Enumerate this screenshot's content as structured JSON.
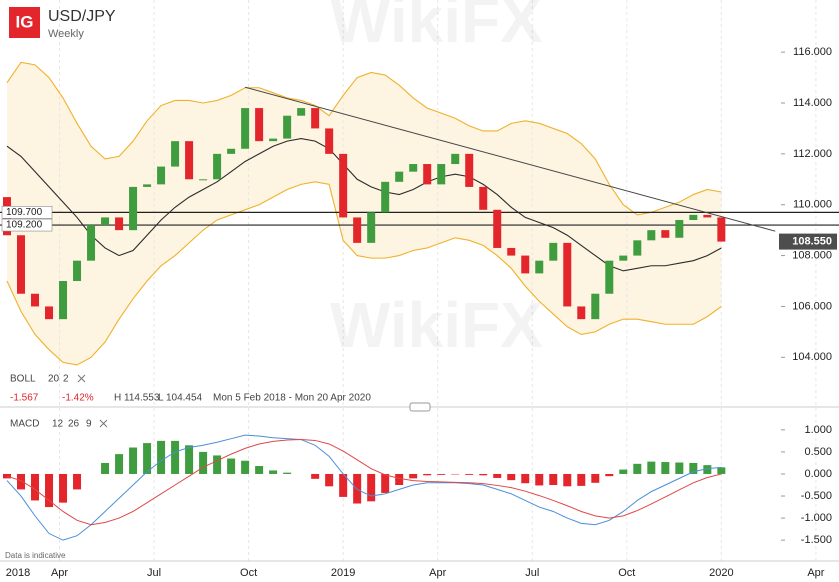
{
  "header": {
    "logo": "IG",
    "symbol": "USD/JPY",
    "interval": "Weekly"
  },
  "watermark": "WikiFX",
  "footnote": "Data is indicative",
  "chart_data": [
    {
      "type": "candlestick",
      "open": [
        110.3,
        108.8,
        106.5,
        106.0,
        105.5,
        107.0,
        107.8,
        109.2,
        109.5,
        109.0,
        110.7,
        110.8,
        111.5,
        112.5,
        111.0,
        111.0,
        112.0,
        112.2,
        113.8,
        112.5,
        112.6,
        113.5,
        113.8,
        113.0,
        112.0,
        109.5,
        108.5,
        109.7,
        110.9,
        111.3,
        111.6,
        110.8,
        111.6,
        112.0,
        110.7,
        109.8,
        108.3,
        108.0,
        107.3,
        107.8,
        108.5,
        106.0,
        105.5,
        106.5,
        107.8,
        108.0,
        108.6,
        109.0,
        108.7,
        109.4,
        109.6,
        109.5
      ],
      "high": {
        "value": 114.553,
        "label": "H 114.553"
      },
      "low": {
        "value": 104.454,
        "label": "L 104.454"
      },
      "close": [
        108.8,
        106.5,
        106.0,
        105.5,
        107.0,
        107.8,
        109.2,
        109.5,
        109.0,
        110.7,
        110.8,
        111.5,
        112.5,
        111.0,
        111.0,
        112.0,
        112.2,
        113.8,
        112.5,
        112.6,
        113.5,
        113.8,
        113.0,
        112.0,
        109.5,
        108.5,
        109.7,
        110.9,
        111.3,
        111.6,
        110.8,
        111.6,
        112.0,
        110.7,
        109.8,
        108.3,
        108.0,
        107.3,
        107.8,
        108.5,
        106.0,
        105.5,
        106.5,
        107.8,
        108.0,
        108.6,
        109.0,
        108.7,
        109.4,
        109.6,
        109.5,
        108.55
      ],
      "up_color": "#3f9d3f",
      "down_color": "#e2262b",
      "xlim": [
        -0.5,
        59.4
      ],
      "xticks": [
        {
          "value": -3.0,
          "label": "2018"
        },
        {
          "value": 3.75,
          "label": "Apr"
        },
        {
          "value": 10.5,
          "label": "Jul"
        },
        {
          "value": 17.25,
          "label": "Oct"
        },
        {
          "value": 24.0,
          "label": "2019"
        },
        {
          "value": 30.75,
          "label": "Apr"
        },
        {
          "value": 37.5,
          "label": "Jul"
        },
        {
          "value": 44.25,
          "label": "Oct"
        },
        {
          "value": 51.0,
          "label": "2020"
        },
        {
          "value": 57.75,
          "label": "Apr"
        }
      ],
      "ylim": [
        102.4,
        118.05
      ],
      "yticks": [
        {
          "value": 104,
          "label": "104.000"
        },
        {
          "value": 106,
          "label": "106.000"
        },
        {
          "value": 108,
          "label": "108.000"
        },
        {
          "value": 110,
          "label": "110.000"
        },
        {
          "value": 112,
          "label": "112.000"
        },
        {
          "value": 114,
          "label": "114.000"
        },
        {
          "value": 116,
          "label": "116.000"
        }
      ],
      "bollinger": {
        "name": "BOLL",
        "period": 20,
        "deviation": 2,
        "upper": [
          114.8,
          115.6,
          115.5,
          115.0,
          114.2,
          113.2,
          112.3,
          111.8,
          111.9,
          112.5,
          113.3,
          113.9,
          114.1,
          114.1,
          114.0,
          114.1,
          114.3,
          114.6,
          114.6,
          114.4,
          114.2,
          114.1,
          113.9,
          113.5,
          114.3,
          115.0,
          115.2,
          115.1,
          114.7,
          114.2,
          113.8,
          113.6,
          113.4,
          113.1,
          112.9,
          112.9,
          113.2,
          113.3,
          113.2,
          113.0,
          112.8,
          112.4,
          111.8,
          110.8,
          110.0,
          109.6,
          109.7,
          109.9,
          110.1,
          110.4,
          110.6,
          110.5
        ],
        "middle": [
          112.3,
          111.9,
          111.3,
          110.7,
          110.1,
          109.5,
          108.8,
          108.3,
          108.0,
          108.2,
          108.8,
          109.4,
          109.9,
          110.3,
          110.6,
          110.9,
          111.3,
          111.7,
          112.0,
          112.3,
          112.5,
          112.6,
          112.5,
          112.2,
          111.6,
          111.0,
          110.7,
          110.5,
          110.4,
          110.6,
          110.9,
          111.1,
          111.2,
          111.1,
          110.8,
          110.4,
          109.9,
          109.5,
          109.3,
          109.1,
          108.8,
          108.4,
          108.0,
          107.6,
          107.4,
          107.5,
          107.6,
          107.6,
          107.7,
          107.8,
          108.0,
          108.3
        ],
        "lower": [
          107.0,
          105.8,
          104.9,
          104.3,
          103.8,
          103.7,
          104.0,
          104.6,
          105.5,
          106.3,
          107.0,
          107.6,
          108.0,
          108.5,
          109.0,
          109.4,
          109.6,
          109.8,
          110.0,
          110.3,
          110.6,
          110.8,
          110.9,
          110.8,
          108.6,
          108.0,
          107.9,
          107.9,
          108.0,
          108.2,
          108.3,
          108.5,
          108.7,
          108.6,
          108.4,
          108.0,
          107.5,
          106.8,
          106.2,
          105.7,
          105.2,
          104.9,
          105.0,
          105.3,
          105.5,
          105.5,
          105.4,
          105.3,
          105.3,
          105.3,
          105.6,
          106.0
        ],
        "color": "#f0b12a",
        "middle_color": "#2b2b2b",
        "fill": "#fdf4e2"
      },
      "trendline": {
        "start": {
          "x": 17.0,
          "value": 114.62
        },
        "end": {
          "x": 54.85,
          "value": 108.96
        }
      },
      "levels": [
        {
          "value": 109.7,
          "label": "109.700"
        },
        {
          "value": 109.2,
          "label": "109.200"
        }
      ],
      "last_price": {
        "value": 108.55,
        "label": "108.550"
      },
      "change": -1.567,
      "change_percent": {
        "value": -1.42,
        "label": "-1.42%"
      },
      "date_range": "Mon 5 Feb 2018 - Mon 20 Apr 2020"
    },
    {
      "type": "macd",
      "name": "MACD",
      "fast": 12,
      "slow": 26,
      "signal_period": 9,
      "macd": [
        -0.15,
        -0.5,
        -0.95,
        -1.35,
        -1.5,
        -1.4,
        -1.15,
        -0.85,
        -0.55,
        -0.25,
        0.05,
        0.3,
        0.5,
        0.6,
        0.65,
        0.72,
        0.8,
        0.88,
        0.86,
        0.82,
        0.8,
        0.78,
        0.65,
        0.4,
        0.0,
        -0.35,
        -0.5,
        -0.45,
        -0.35,
        -0.25,
        -0.2,
        -0.2,
        -0.2,
        -0.22,
        -0.25,
        -0.35,
        -0.45,
        -0.6,
        -0.75,
        -0.85,
        -1.0,
        -1.12,
        -1.15,
        -1.05,
        -0.85,
        -0.6,
        -0.4,
        -0.25,
        -0.1,
        0.05,
        0.12,
        0.15
      ],
      "signal": [
        -0.05,
        -0.15,
        -0.35,
        -0.6,
        -0.85,
        -1.05,
        -1.15,
        -1.1,
        -1.0,
        -0.85,
        -0.65,
        -0.45,
        -0.25,
        -0.05,
        0.15,
        0.3,
        0.45,
        0.58,
        0.68,
        0.74,
        0.77,
        0.78,
        0.76,
        0.68,
        0.52,
        0.32,
        0.12,
        -0.02,
        -0.1,
        -0.15,
        -0.17,
        -0.18,
        -0.19,
        -0.2,
        -0.22,
        -0.26,
        -0.31,
        -0.39,
        -0.49,
        -0.6,
        -0.72,
        -0.85,
        -0.95,
        -1.0,
        -0.95,
        -0.83,
        -0.68,
        -0.52,
        -0.36,
        -0.2,
        -0.08,
        0.0
      ],
      "histogram": [
        -0.1,
        -0.35,
        -0.6,
        -0.75,
        -0.65,
        -0.35,
        0.0,
        0.25,
        0.45,
        0.6,
        0.7,
        0.75,
        0.75,
        0.65,
        0.5,
        0.42,
        0.35,
        0.3,
        0.18,
        0.08,
        0.03,
        0.0,
        -0.11,
        -0.28,
        -0.52,
        -0.67,
        -0.62,
        -0.43,
        -0.25,
        -0.1,
        -0.03,
        -0.02,
        -0.01,
        -0.02,
        -0.03,
        -0.09,
        -0.14,
        -0.21,
        -0.26,
        -0.25,
        -0.28,
        -0.27,
        -0.2,
        -0.05,
        0.1,
        0.23,
        0.28,
        0.27,
        0.26,
        0.25,
        0.2,
        0.15
      ],
      "macd_color": "#4a8fd8",
      "signal_color": "#e04848",
      "up_color": "#3f9d3f",
      "down_color": "#e2262b",
      "ylim": [
        -1.95,
        1.45
      ],
      "yticks": [
        {
          "value": 1,
          "label": "1.000"
        },
        {
          "value": 0.5,
          "label": "0.500"
        },
        {
          "value": 0,
          "label": "0.000"
        },
        {
          "value": -0.5,
          "label": "-0.500"
        },
        {
          "value": -1,
          "label": "-1.000"
        },
        {
          "value": -1.5,
          "label": "-1.500"
        }
      ]
    }
  ]
}
